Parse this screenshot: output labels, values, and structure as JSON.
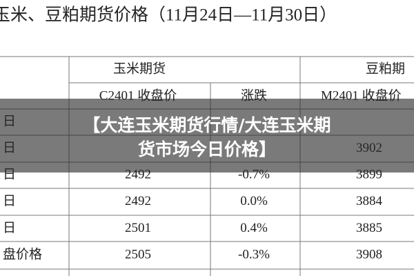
{
  "header": {
    "title": "玉米、豆粕期货价格（11月24日—11月30日）"
  },
  "table": {
    "group_headers": [
      "玉米期货",
      "豆粕期"
    ],
    "column_headers": [
      "C2401 收盘价",
      "涨跌",
      "M2401 收盘价"
    ],
    "rows": [
      {
        "label": "日"
      },
      {
        "label": "日",
        "m_close": "3902"
      },
      {
        "label": "日",
        "c_close": "2492",
        "change": "-0.7%",
        "m_close": "3899"
      },
      {
        "label": "日",
        "c_close": "2492",
        "change": "0.0%",
        "m_close": "3884"
      },
      {
        "label": "日",
        "c_close": "2501",
        "change": "0.4%",
        "m_close": "3885"
      },
      {
        "label": "盘价格",
        "c_close": "2505",
        "change": "-0.3%",
        "m_close": "3908"
      }
    ]
  },
  "banner": {
    "lines": [
      "【大连玉米期货行情/大连玉米期",
      "货市场今日价格】"
    ]
  }
}
